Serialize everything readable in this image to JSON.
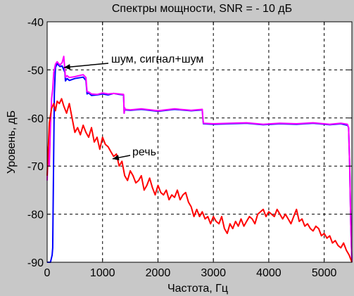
{
  "chart_data": {
    "type": "line",
    "title": "Спектры мощности, SNR = - 10 дБ",
    "xlabel": "Частота, Гц",
    "ylabel": "Уровень, дБ",
    "xlim": [
      0,
      5500
    ],
    "ylim": [
      -90,
      -40
    ],
    "xticks": [
      0,
      1000,
      2000,
      3000,
      4000,
      5000
    ],
    "yticks": [
      -40,
      -50,
      -60,
      -70,
      -80,
      -90
    ],
    "xtick_labels": [
      "0",
      "1000",
      "2000",
      "3000",
      "4000",
      "5000"
    ],
    "ytick_labels": [
      "-40",
      "-50",
      "-60",
      "-70",
      "-80",
      "-90"
    ],
    "grid": true,
    "colors": {
      "figure_bg": "#c8c8c8",
      "axes_bg": "#ffffff",
      "speech": "#ff0000",
      "noise": "#0000ff",
      "signal_plus_noise": "#ff00ff",
      "grid": "#000000"
    },
    "annotations": [
      {
        "text": "шум, сигнал+шум",
        "points_to": [
          300,
          -49.5
        ]
      },
      {
        "text": "речь",
        "points_to": [
          1180,
          -68.5
        ]
      }
    ],
    "series": [
      {
        "color": "#0000ff",
        "x": [
          0,
          60,
          90,
          100,
          115,
          130,
          150,
          180,
          230,
          270,
          320,
          330,
          360,
          400,
          500,
          650,
          700,
          720,
          750,
          800,
          900,
          1000,
          1100,
          1200,
          1300,
          1380,
          1390,
          1400,
          1410,
          1500,
          1700,
          2000,
          2300,
          2600,
          2800,
          2810,
          2820,
          3000,
          3300,
          3600,
          3900,
          4200,
          4500,
          4800,
          5100,
          5300,
          5420,
          5440,
          5460,
          5480,
          5500
        ],
        "y": [
          -90,
          -90,
          -88.5,
          -87,
          -70,
          -55,
          -49.5,
          -48.7,
          -49.3,
          -49.2,
          -50.5,
          -52.3,
          -51.8,
          -52.2,
          -51.8,
          -51.5,
          -52.2,
          -55,
          -54.8,
          -55.3,
          -55.2,
          -55,
          -55.2,
          -54.9,
          -55.1,
          -55.2,
          -59,
          -58,
          -58.3,
          -58.4,
          -58.2,
          -58.6,
          -58.2,
          -58.5,
          -58.3,
          -60,
          -61.2,
          -61.3,
          -61.2,
          -61.1,
          -61.4,
          -61.2,
          -61.3,
          -61.1,
          -61.4,
          -61.2,
          -61.5,
          -62,
          -70,
          -82,
          -90
        ]
      },
      {
        "color": "#ff00ff",
        "x": [
          0,
          20,
          40,
          60,
          80,
          100,
          120,
          150,
          180,
          230,
          270,
          300,
          320,
          330,
          360,
          400,
          500,
          650,
          700,
          720,
          750,
          800,
          900,
          1000,
          1100,
          1200,
          1300,
          1380,
          1390,
          1400,
          1410,
          1500,
          1700,
          2000,
          2300,
          2600,
          2800,
          2810,
          2820,
          3000,
          3300,
          3600,
          3900,
          4200,
          4500,
          4800,
          5100,
          5300,
          5420,
          5440,
          5460,
          5480,
          5500
        ],
        "y": [
          -73,
          -66,
          -70,
          -62,
          -56,
          -54,
          -50.5,
          -48.8,
          -48.3,
          -49,
          -48.5,
          -47.2,
          -50,
          -51.5,
          -51.2,
          -51.6,
          -51.4,
          -51,
          -51.6,
          -54.5,
          -54.6,
          -55,
          -55.1,
          -54.8,
          -55,
          -54.9,
          -55,
          -55.1,
          -59,
          -57.9,
          -58.2,
          -58.3,
          -58.1,
          -58.5,
          -58.1,
          -58.4,
          -58.2,
          -60,
          -61.1,
          -61.2,
          -61.1,
          -61,
          -61.3,
          -61.1,
          -61.2,
          -61,
          -61.3,
          -61.1,
          -61.3,
          -62,
          -70,
          -82,
          -90
        ]
      },
      {
        "color": "#ff0000",
        "x": [
          0,
          40,
          80,
          120,
          150,
          180,
          220,
          260,
          300,
          350,
          400,
          450,
          500,
          550,
          600,
          650,
          700,
          750,
          800,
          850,
          900,
          950,
          1000,
          1050,
          1100,
          1150,
          1200,
          1250,
          1300,
          1350,
          1400,
          1450,
          1500,
          1550,
          1600,
          1650,
          1700,
          1750,
          1800,
          1850,
          1900,
          1950,
          2000,
          2050,
          2100,
          2150,
          2200,
          2250,
          2300,
          2350,
          2400,
          2450,
          2500,
          2550,
          2600,
          2650,
          2700,
          2750,
          2800,
          2850,
          2900,
          2950,
          3000,
          3050,
          3100,
          3150,
          3200,
          3250,
          3300,
          3350,
          3400,
          3450,
          3500,
          3550,
          3600,
          3650,
          3700,
          3750,
          3800,
          3850,
          3900,
          3950,
          4000,
          4050,
          4100,
          4150,
          4200,
          4250,
          4300,
          4350,
          4400,
          4450,
          4500,
          4550,
          4600,
          4650,
          4700,
          4750,
          4800,
          4850,
          4900,
          4950,
          5000,
          5050,
          5100,
          5150,
          5200,
          5250,
          5300,
          5350,
          5400,
          5450,
          5500
        ],
        "y": [
          -72,
          -61,
          -58,
          -57,
          -58.5,
          -56.5,
          -57,
          -56,
          -57.5,
          -59,
          -57,
          -60,
          -63,
          -62,
          -63.5,
          -61.5,
          -63,
          -64,
          -62,
          -65,
          -64,
          -66.5,
          -64,
          -65.5,
          -66,
          -67,
          -68,
          -67.5,
          -70,
          -69,
          -72,
          -73,
          -71,
          -72,
          -73.5,
          -73,
          -72,
          -75,
          -74,
          -72.5,
          -74.5,
          -76,
          -74,
          -75.5,
          -76,
          -75,
          -77,
          -76,
          -76.5,
          -75,
          -77,
          -76,
          -75.5,
          -77.5,
          -78.5,
          -80.5,
          -79,
          -80.5,
          -79.5,
          -81,
          -80.5,
          -82,
          -80.5,
          -81.5,
          -82,
          -80.5,
          -83,
          -84,
          -82,
          -83,
          -81.5,
          -82.5,
          -81,
          -82.5,
          -81.5,
          -80.5,
          -81,
          -82,
          -80,
          -79.5,
          -79,
          -80.5,
          -79.5,
          -80,
          -80.5,
          -79,
          -80,
          -81,
          -80,
          -81,
          -82,
          -80.5,
          -79,
          -81.5,
          -81,
          -82.5,
          -82,
          -83,
          -83.5,
          -82.5,
          -83,
          -84.5,
          -84,
          -85,
          -84.5,
          -86,
          -85.5,
          -86.5,
          -87,
          -86,
          -87.5,
          -88.5,
          -90
        ]
      }
    ]
  }
}
